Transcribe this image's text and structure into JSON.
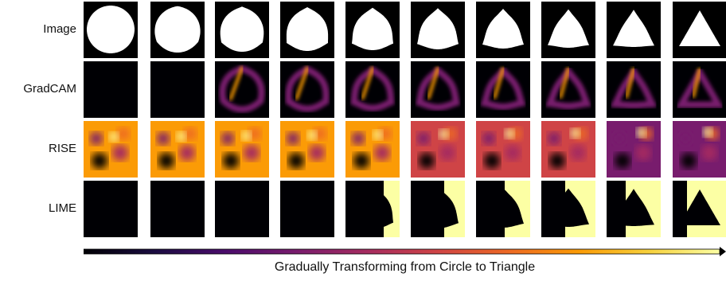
{
  "figure": {
    "rows": [
      {
        "label": "Image",
        "method": "image"
      },
      {
        "label": "GradCAM",
        "method": "gradcam"
      },
      {
        "label": "RISE",
        "method": "rise"
      },
      {
        "label": "LIME",
        "method": "lime"
      }
    ],
    "columns": 10,
    "caption": "Gradually Transforming from Circle to Triangle",
    "colormap": [
      "#000004",
      "#1b0c41",
      "#4a0c6b",
      "#781c6d",
      "#a52c60",
      "#cf4446",
      "#ed6925",
      "#fb9b06",
      "#f7d13d",
      "#fcffa4"
    ],
    "colors": {
      "image_background": "#000000",
      "shape_fill": "#ffffff",
      "lime_background": "#000004",
      "lime_highlight": "#fcffa4",
      "rise_base": "#d2591e",
      "arrow": "#000000"
    }
  }
}
